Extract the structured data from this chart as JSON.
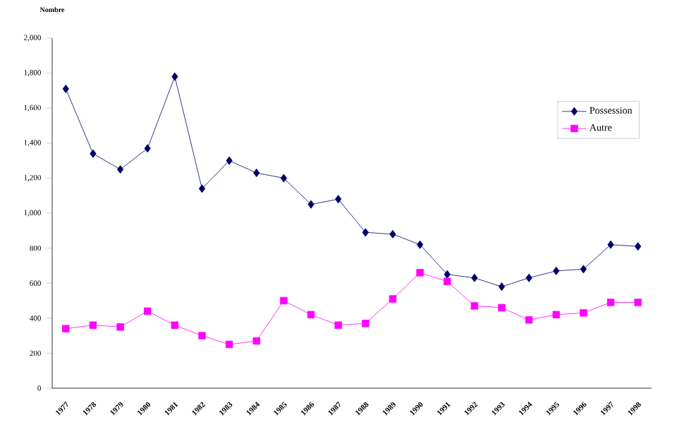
{
  "chart_data": {
    "type": "line",
    "ylabel": "Nombre",
    "categories": [
      "1977",
      "1978",
      "1979",
      "1980",
      "1981",
      "1982",
      "1983",
      "1984",
      "1985",
      "1986",
      "1987",
      "1988",
      "1989",
      "1990",
      "1991",
      "1992",
      "1993",
      "1994",
      "1995",
      "1996",
      "1997",
      "1998"
    ],
    "series": [
      {
        "name": "Possession",
        "color": "#000066",
        "marker": "diamond",
        "values": [
          1710,
          1340,
          1250,
          1370,
          1780,
          1140,
          1300,
          1230,
          1200,
          1050,
          1080,
          890,
          880,
          820,
          650,
          630,
          580,
          630,
          670,
          680,
          820,
          810
        ]
      },
      {
        "name": "Autre",
        "color": "#ff00ff",
        "marker": "square",
        "values": [
          340,
          360,
          350,
          440,
          360,
          300,
          250,
          270,
          500,
          420,
          360,
          370,
          510,
          660,
          610,
          470,
          460,
          390,
          420,
          430,
          490,
          490
        ]
      }
    ],
    "ylim": [
      0,
      2000
    ],
    "yticks": [
      0,
      200,
      400,
      600,
      800,
      {
        "value": 1000,
        "label": "1,000"
      },
      {
        "value": 1200,
        "label": "1,200"
      },
      {
        "value": 1400,
        "label": "1,400"
      },
      {
        "value": 1600,
        "label": "1,600"
      },
      {
        "value": 1800,
        "label": "1,800"
      },
      {
        "value": 2000,
        "label": "2,000"
      }
    ],
    "grid": false,
    "legend": "top right"
  }
}
